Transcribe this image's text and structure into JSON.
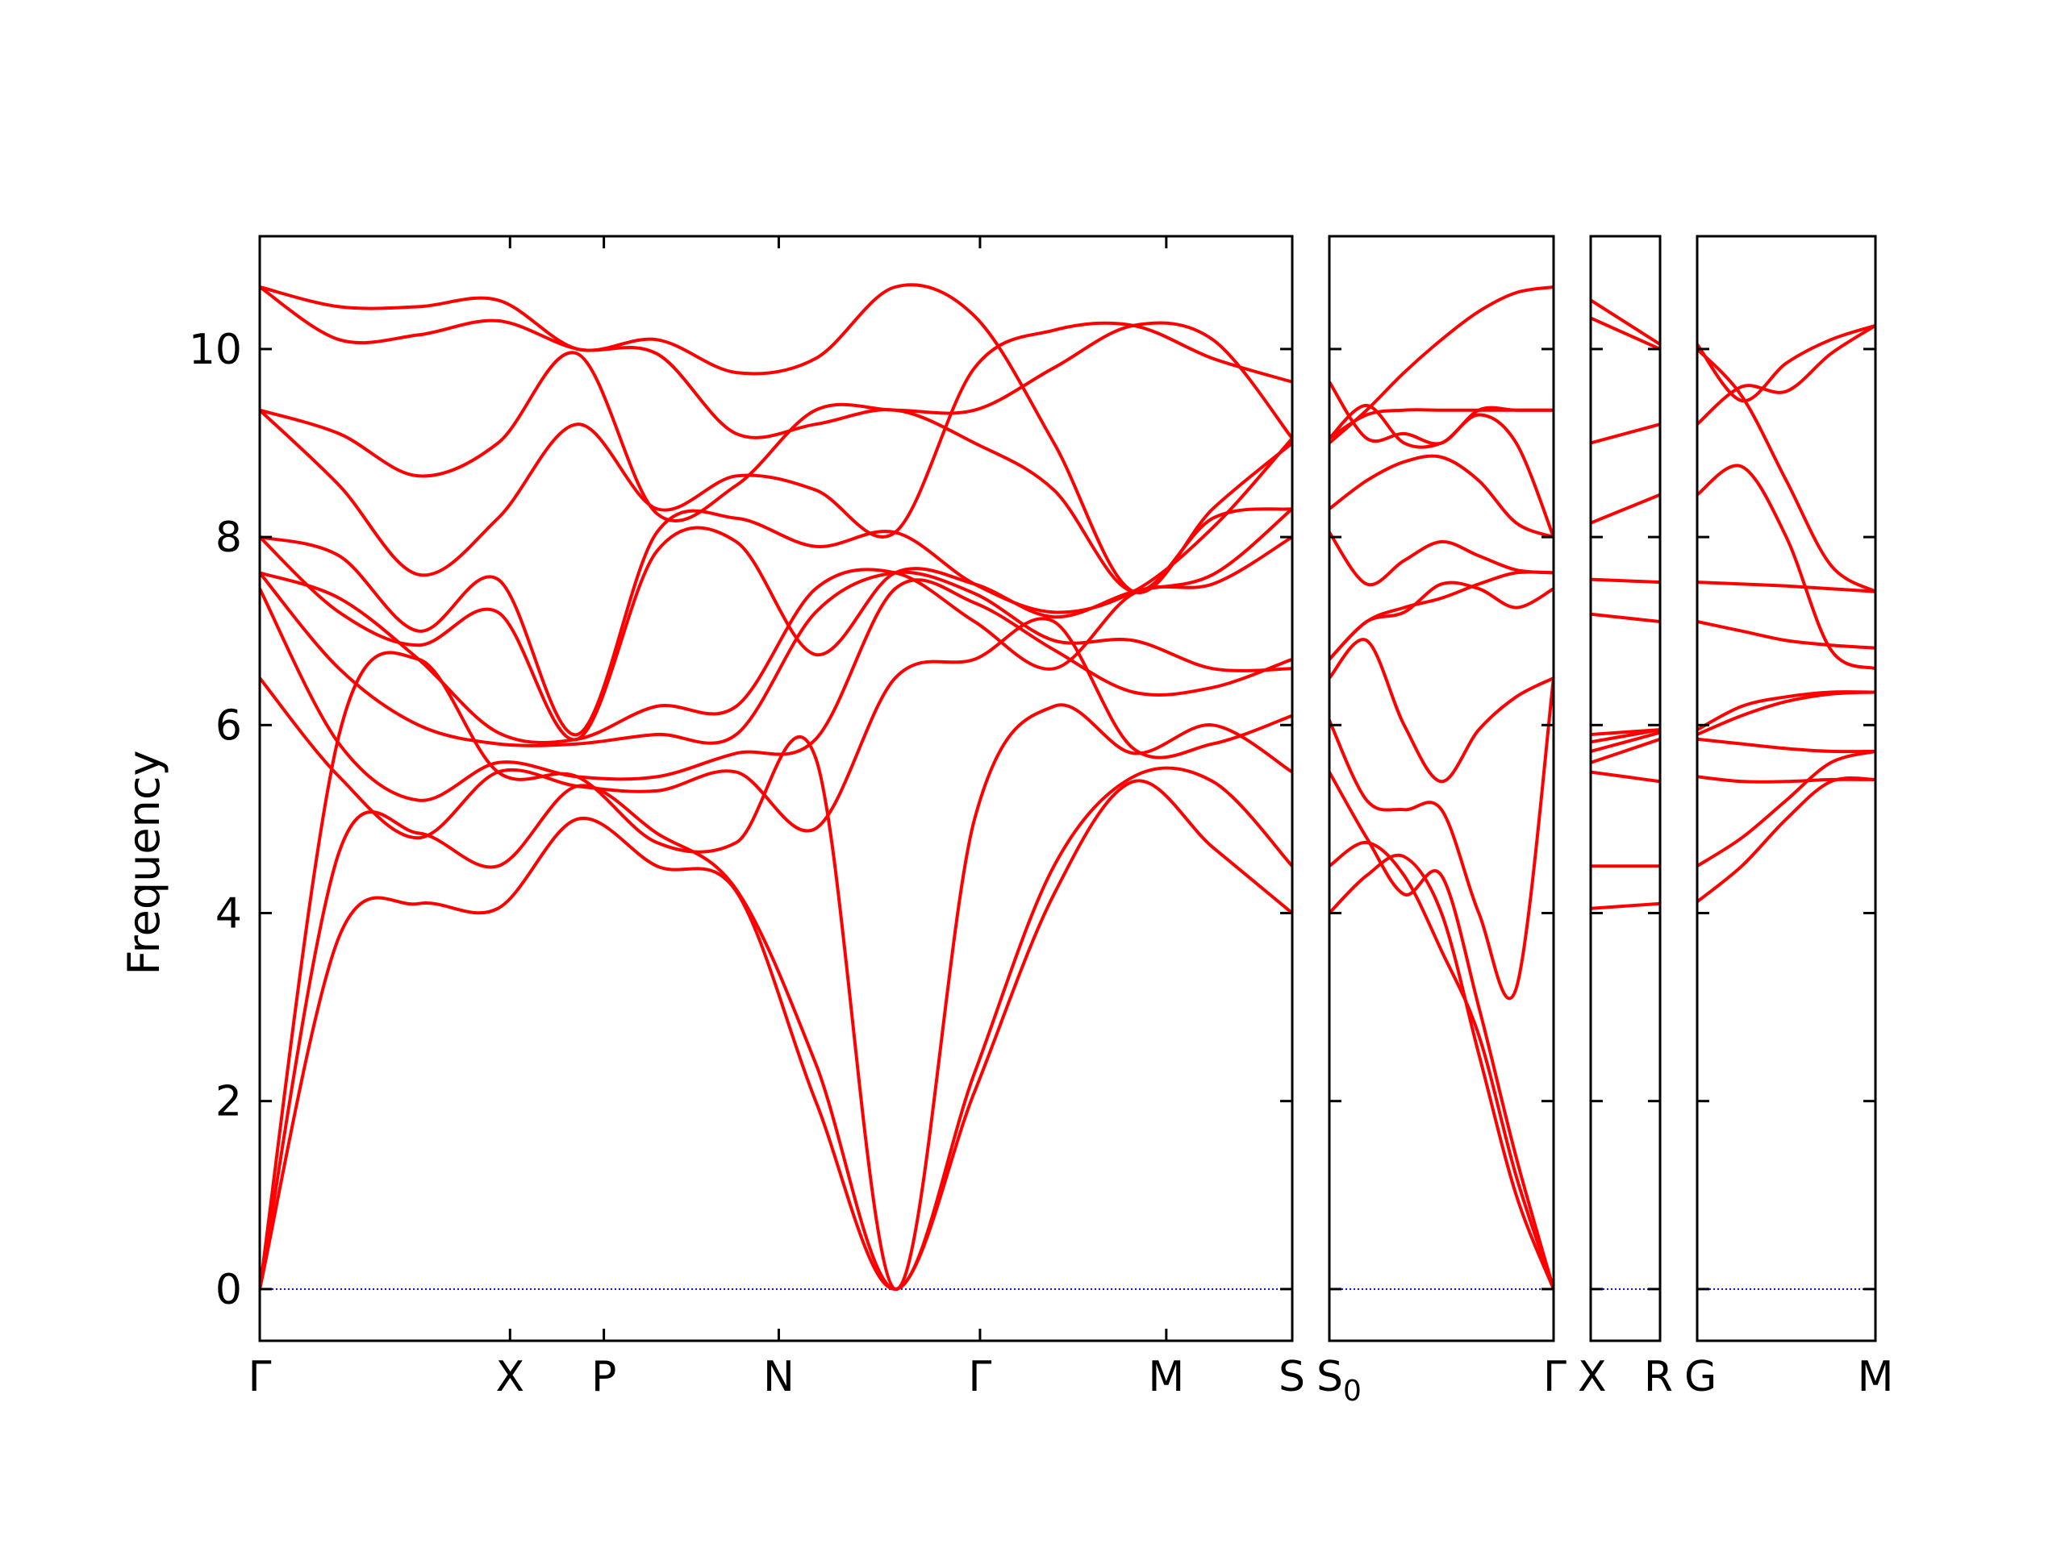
{
  "chart_data": {
    "type": "line",
    "title": "",
    "xlabel": "",
    "ylabel": "Frequency",
    "ylim": [
      -0.55,
      11.2
    ],
    "yticks": [
      0,
      2,
      4,
      6,
      8,
      10
    ],
    "grid": false,
    "legend": "none",
    "colors": {
      "bands": "#ff0000",
      "zero_line": "#0000ff",
      "axes": "#000000"
    },
    "segments": [
      {
        "labels": [
          "Γ",
          "X",
          "P",
          "N",
          "Γ",
          "M",
          "S"
        ],
        "positions": [
          0,
          0.2424,
          0.3333,
          0.5027,
          0.6976,
          0.878,
          1.0
        ],
        "bands": [
          [
            0.0,
            3.75,
            4.1,
            4.05,
            5.0,
            4.5,
            4.23,
            2.0,
            0.0,
            2.1,
            4.2,
            5.4,
            4.7,
            4.0
          ],
          [
            0.0,
            4.65,
            4.85,
            4.5,
            5.35,
            4.85,
            4.25,
            2.4,
            0.0,
            2.3,
            4.5,
            5.45,
            5.4,
            4.5
          ],
          [
            0.0,
            5.9,
            6.7,
            5.5,
            5.45,
            4.75,
            4.75,
            5.65,
            0.0,
            5.0,
            6.2,
            5.7,
            6.0,
            5.5
          ],
          [
            6.5,
            5.45,
            4.8,
            5.5,
            5.35,
            5.3,
            5.5,
            4.9,
            6.5,
            6.7,
            7.1,
            5.75,
            5.8,
            6.1
          ],
          [
            7.45,
            5.8,
            5.2,
            5.6,
            5.45,
            5.45,
            5.7,
            5.85,
            7.45,
            7.3,
            6.8,
            6.35,
            6.4,
            6.7
          ],
          [
            7.62,
            6.6,
            6.0,
            5.8,
            5.8,
            5.9,
            5.9,
            7.2,
            7.62,
            7.4,
            6.9,
            6.9,
            6.6,
            6.6
          ],
          [
            7.62,
            7.35,
            6.7,
            5.92,
            5.85,
            6.2,
            6.2,
            7.45,
            7.62,
            7.1,
            6.6,
            7.4,
            7.5,
            8.0
          ],
          [
            8.0,
            7.2,
            6.85,
            7.2,
            5.85,
            7.85,
            7.95,
            6.75,
            7.62,
            7.5,
            7.15,
            7.42,
            7.6,
            8.3
          ],
          [
            8.0,
            7.8,
            7.0,
            7.55,
            5.9,
            8.05,
            8.2,
            7.9,
            8.05,
            7.5,
            7.2,
            7.42,
            8.1,
            9.05
          ],
          [
            9.35,
            8.55,
            7.6,
            8.2,
            9.2,
            8.3,
            8.65,
            8.5,
            8.05,
            9.8,
            10.2,
            10.25,
            9.9,
            9.65
          ],
          [
            9.35,
            9.1,
            8.65,
            9.0,
            9.95,
            8.25,
            8.55,
            9.35,
            9.35,
            9.35,
            9.8,
            10.25,
            10.1,
            9.05
          ],
          [
            10.66,
            10.1,
            10.15,
            10.3,
            10.0,
            9.95,
            9.1,
            9.2,
            9.35,
            9.0,
            8.5,
            7.42,
            8.2,
            8.3
          ],
          [
            10.66,
            10.45,
            10.45,
            10.52,
            10.0,
            10.1,
            9.75,
            9.9,
            10.66,
            10.35,
            9.0,
            7.42,
            8.3,
            9.0
          ]
        ]
      },
      {
        "labels": [
          "S0",
          "Γ"
        ],
        "positions": [
          0,
          1.0
        ],
        "bands": [
          [
            4.0,
            4.4,
            4.6,
            4.0,
            2.5,
            1.0,
            0.0
          ],
          [
            4.5,
            4.75,
            4.4,
            3.6,
            2.7,
            1.2,
            0.0
          ],
          [
            5.5,
            4.8,
            4.2,
            4.4,
            3.0,
            1.4,
            0.0
          ],
          [
            6.05,
            5.2,
            5.1,
            5.1,
            4.0,
            3.2,
            6.5
          ],
          [
            6.5,
            6.9,
            6.0,
            5.4,
            5.95,
            6.3,
            6.5
          ],
          [
            6.7,
            7.1,
            7.2,
            7.5,
            7.45,
            7.25,
            7.45
          ],
          [
            6.7,
            7.1,
            7.25,
            7.35,
            7.5,
            7.62,
            7.62
          ],
          [
            8.05,
            7.5,
            7.75,
            7.95,
            7.8,
            7.65,
            7.62
          ],
          [
            8.3,
            8.6,
            8.8,
            8.85,
            8.6,
            8.15,
            8.0
          ],
          [
            9.05,
            9.3,
            9.35,
            9.35,
            9.35,
            9.35,
            9.35
          ],
          [
            9.05,
            9.4,
            9.0,
            9.0,
            9.3,
            9.0,
            8.0
          ],
          [
            9.65,
            9.05,
            9.1,
            9.0,
            9.35,
            9.35,
            9.35
          ],
          [
            9.0,
            9.35,
            9.75,
            10.1,
            10.4,
            10.6,
            10.66
          ]
        ]
      },
      {
        "labels": [
          "X",
          "R"
        ],
        "positions": [
          0,
          1.0
        ],
        "bands": [
          [
            4.05,
            4.1
          ],
          [
            4.5,
            4.5
          ],
          [
            5.5,
            5.4
          ],
          [
            5.6,
            5.85
          ],
          [
            5.72,
            5.92
          ],
          [
            5.82,
            5.95
          ],
          [
            5.9,
            5.95
          ],
          [
            7.18,
            7.1
          ],
          [
            7.55,
            7.52
          ],
          [
            8.15,
            8.45
          ],
          [
            9.0,
            9.2
          ],
          [
            10.33,
            10.0
          ],
          [
            10.52,
            10.05
          ]
        ]
      },
      {
        "labels": [
          "G",
          "M"
        ],
        "positions": [
          0,
          1.0
        ],
        "bands": [
          [
            4.12,
            4.5,
            5.0,
            5.4,
            5.42
          ],
          [
            4.5,
            4.8,
            5.2,
            5.6,
            5.72
          ],
          [
            5.45,
            5.4,
            5.4,
            5.42,
            5.42
          ],
          [
            5.85,
            5.8,
            5.75,
            5.72,
            5.72
          ],
          [
            5.9,
            6.1,
            6.25,
            6.33,
            6.35
          ],
          [
            5.95,
            6.2,
            6.3,
            6.35,
            6.35
          ],
          [
            7.1,
            7.0,
            6.9,
            6.85,
            6.82
          ],
          [
            7.52,
            7.5,
            7.48,
            7.45,
            7.42
          ],
          [
            8.45,
            8.75,
            8.0,
            6.8,
            6.6
          ],
          [
            9.2,
            9.6,
            9.55,
            9.95,
            10.25
          ],
          [
            10.0,
            9.5,
            8.6,
            7.7,
            7.42
          ],
          [
            10.05,
            9.45,
            9.85,
            10.1,
            10.25
          ]
        ]
      }
    ]
  }
}
